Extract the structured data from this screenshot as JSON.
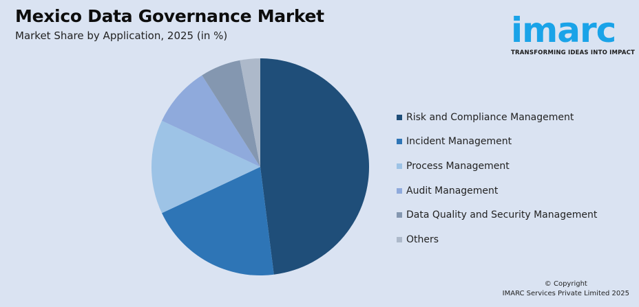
{
  "header": {
    "title": "Mexico Data Governance Market",
    "subtitle": "Market Share by Application, 2025 (in %)"
  },
  "logo": {
    "wordmark": "imarc",
    "tagline": "TRANSFORMING IDEAS INTO IMPACT",
    "color": "#1aa3e8"
  },
  "chart_data": {
    "type": "pie",
    "title": "Mexico Data Governance Market",
    "subtitle": "Market Share by Application, 2025 (in %)",
    "categories": [
      "Risk and Compliance Management",
      "Incident Management",
      "Process Management",
      "Audit Management",
      "Data Quality and Security Management",
      "Others"
    ],
    "values": [
      48,
      20,
      14,
      9,
      6,
      3
    ],
    "colors": [
      "#1f4e79",
      "#2e75b6",
      "#9dc3e6",
      "#8faadc",
      "#8497b0",
      "#adb9ca"
    ],
    "legend_position": "right",
    "start_angle_deg": 0,
    "direction": "clockwise"
  },
  "legend": {
    "items": [
      {
        "label": "Risk and Compliance Management",
        "color": "#1f4e79"
      },
      {
        "label": "Incident Management",
        "color": "#2e75b6"
      },
      {
        "label": "Process Management",
        "color": "#9dc3e6"
      },
      {
        "label": "Audit Management",
        "color": "#8faadc"
      },
      {
        "label": "Data Quality and Security Management",
        "color": "#8497b0"
      },
      {
        "label": "Others",
        "color": "#adb9ca"
      }
    ]
  },
  "footer": {
    "copyright_line1": "© Copyright",
    "copyright_line2": "IMARC Services Private Limited 2025"
  }
}
